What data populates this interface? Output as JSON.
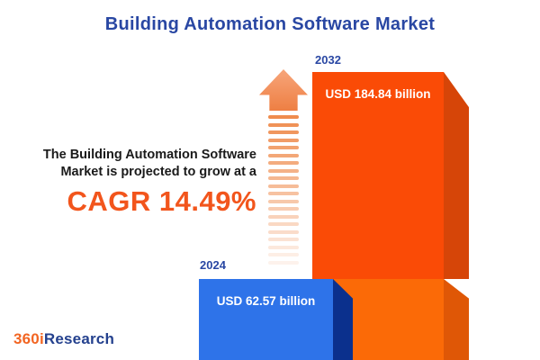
{
  "title": "Building Automation Software Market",
  "annotation": {
    "line1": "The Building Automation Software",
    "line2": "Market is projected to grow at a",
    "cagr": "CAGR 14.49%"
  },
  "chart_data": {
    "type": "bar",
    "title": "Building Automation Software Market",
    "categories": [
      "2024",
      "2032"
    ],
    "values": [
      62.57,
      184.84
    ],
    "unit": "USD billion",
    "value_labels": [
      "USD 62.57 billion",
      "USD 184.84 billion"
    ],
    "cagr_percent": 14.49,
    "legend": "none",
    "grid": false,
    "axes_shown": false,
    "bar_style": "3d-extruded",
    "bar_colors": [
      "#2E73E9",
      "#FA4B06"
    ]
  },
  "logo": {
    "part1": "360i",
    "part2": "Research"
  },
  "icons": {
    "growth_arrow": "upward-arrow-with-fading-dashed-tail"
  },
  "colors": {
    "brand_blue": "#2947A3",
    "text_dark": "#1A1A1A",
    "accent_orange": "#F2551C",
    "arrow_orange": "#EF8C4E",
    "arrow_head_light": "#F7A57A",
    "arrow_head_deep": "#EE7F43",
    "orange_top_front": "#FA4B06",
    "orange_top_side": "#D64508",
    "orange_bottom_front": "#FB6A07",
    "orange_bottom_side": "#DF5706",
    "blue_front": "#2E73E9",
    "blue_side": "#0B308D",
    "logo_orange": "#F26522",
    "logo_blue": "#24418E"
  }
}
